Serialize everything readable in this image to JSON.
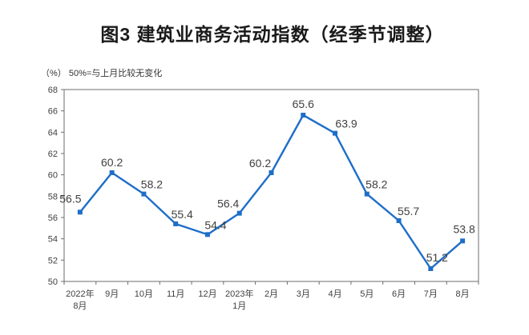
{
  "title": "图3 建筑业商务活动指数（经季节调整）",
  "subtitle": "（%） 50%=与上月比较无变化",
  "chart_data": {
    "type": "line",
    "title": "图3 建筑业商务活动指数（经季节调整）",
    "unit_note": "（%） 50%=与上月比较无变化",
    "categories": [
      [
        "2022年",
        "8月"
      ],
      "9月",
      "10月",
      "11月",
      "12月",
      [
        "2023年",
        "1月"
      ],
      "2月",
      "3月",
      "4月",
      "5月",
      "6月",
      "7月",
      "8月"
    ],
    "values": [
      56.5,
      60.2,
      58.2,
      55.4,
      54.4,
      56.4,
      60.2,
      65.6,
      63.9,
      58.2,
      55.7,
      51.2,
      53.8
    ],
    "ylim": [
      50,
      68
    ],
    "ytick_step": 2,
    "grid": false,
    "legend": "none",
    "marker": "square",
    "line_color": "#1E6EC8",
    "label_color": "#404040",
    "axis_color": "#6e6e6e"
  }
}
